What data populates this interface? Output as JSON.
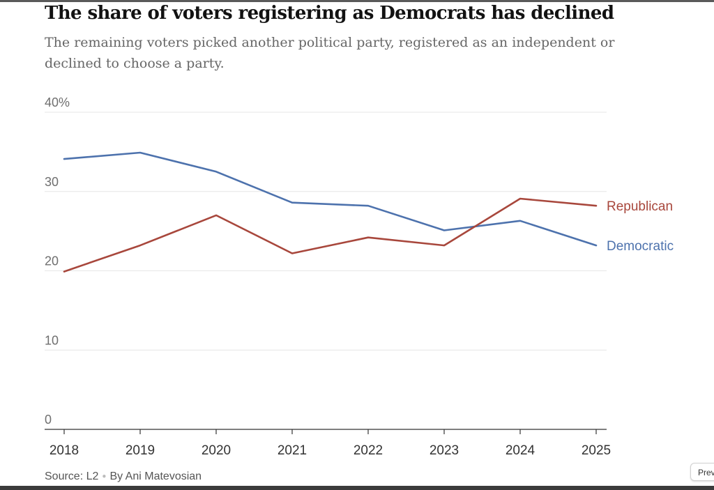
{
  "title": "The share of voters registering as Democrats has declined",
  "subtitle": "The remaining voters picked another political party, registered as an independent or declined to choose a party.",
  "chart_data": {
    "type": "line",
    "title": "The share of voters registering as Democrats has declined",
    "subtitle": "The remaining voters picked another political party, registered as an independent or declined to choose a party.",
    "x": [
      "2018",
      "2019",
      "2020",
      "2021",
      "2022",
      "2023",
      "2024",
      "2025"
    ],
    "y_ticks": [
      "0",
      "10",
      "20",
      "30",
      "40%"
    ],
    "ylim": [
      0,
      40
    ],
    "grid": true,
    "series": [
      {
        "name": "Democratic",
        "color": "#4d72ad",
        "values": [
          34.1,
          34.9,
          32.5,
          28.6,
          28.2,
          25.1,
          26.3,
          23.2
        ]
      },
      {
        "name": "Republican",
        "color": "#a8473c",
        "values": [
          19.9,
          23.2,
          27.0,
          22.2,
          24.2,
          23.2,
          29.1,
          28.2
        ]
      }
    ]
  },
  "source": {
    "text": "Source: L2",
    "byline": "By Ani Matevosian"
  },
  "preview_button": "Preview"
}
